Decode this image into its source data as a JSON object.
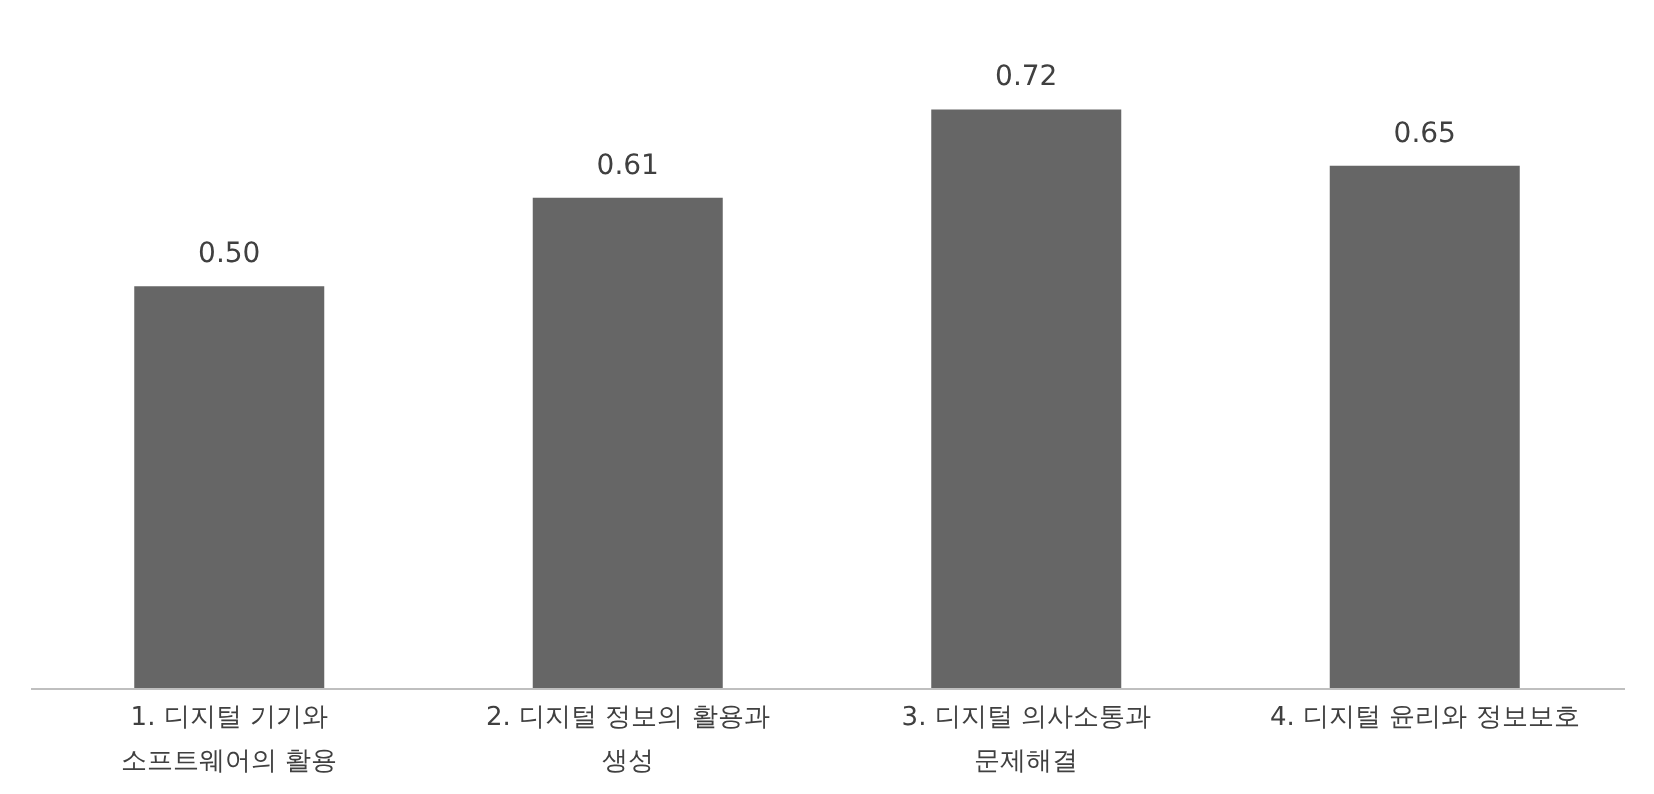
{
  "chart_data": {
    "type": "bar",
    "categories": [
      "1. 디지털 기기와\n소프트웨어의 활용",
      "2. 디지털 정보의 활용과\n생성",
      "3. 디지털 의사소통과\n문제해결",
      "4. 디지털 윤리와 정보보호"
    ],
    "values": [
      0.5,
      0.61,
      0.72,
      0.65
    ],
    "color": "#666666",
    "value_labels": [
      "0.50",
      "0.61",
      "0.72",
      "0.65"
    ],
    "grid": false
  }
}
